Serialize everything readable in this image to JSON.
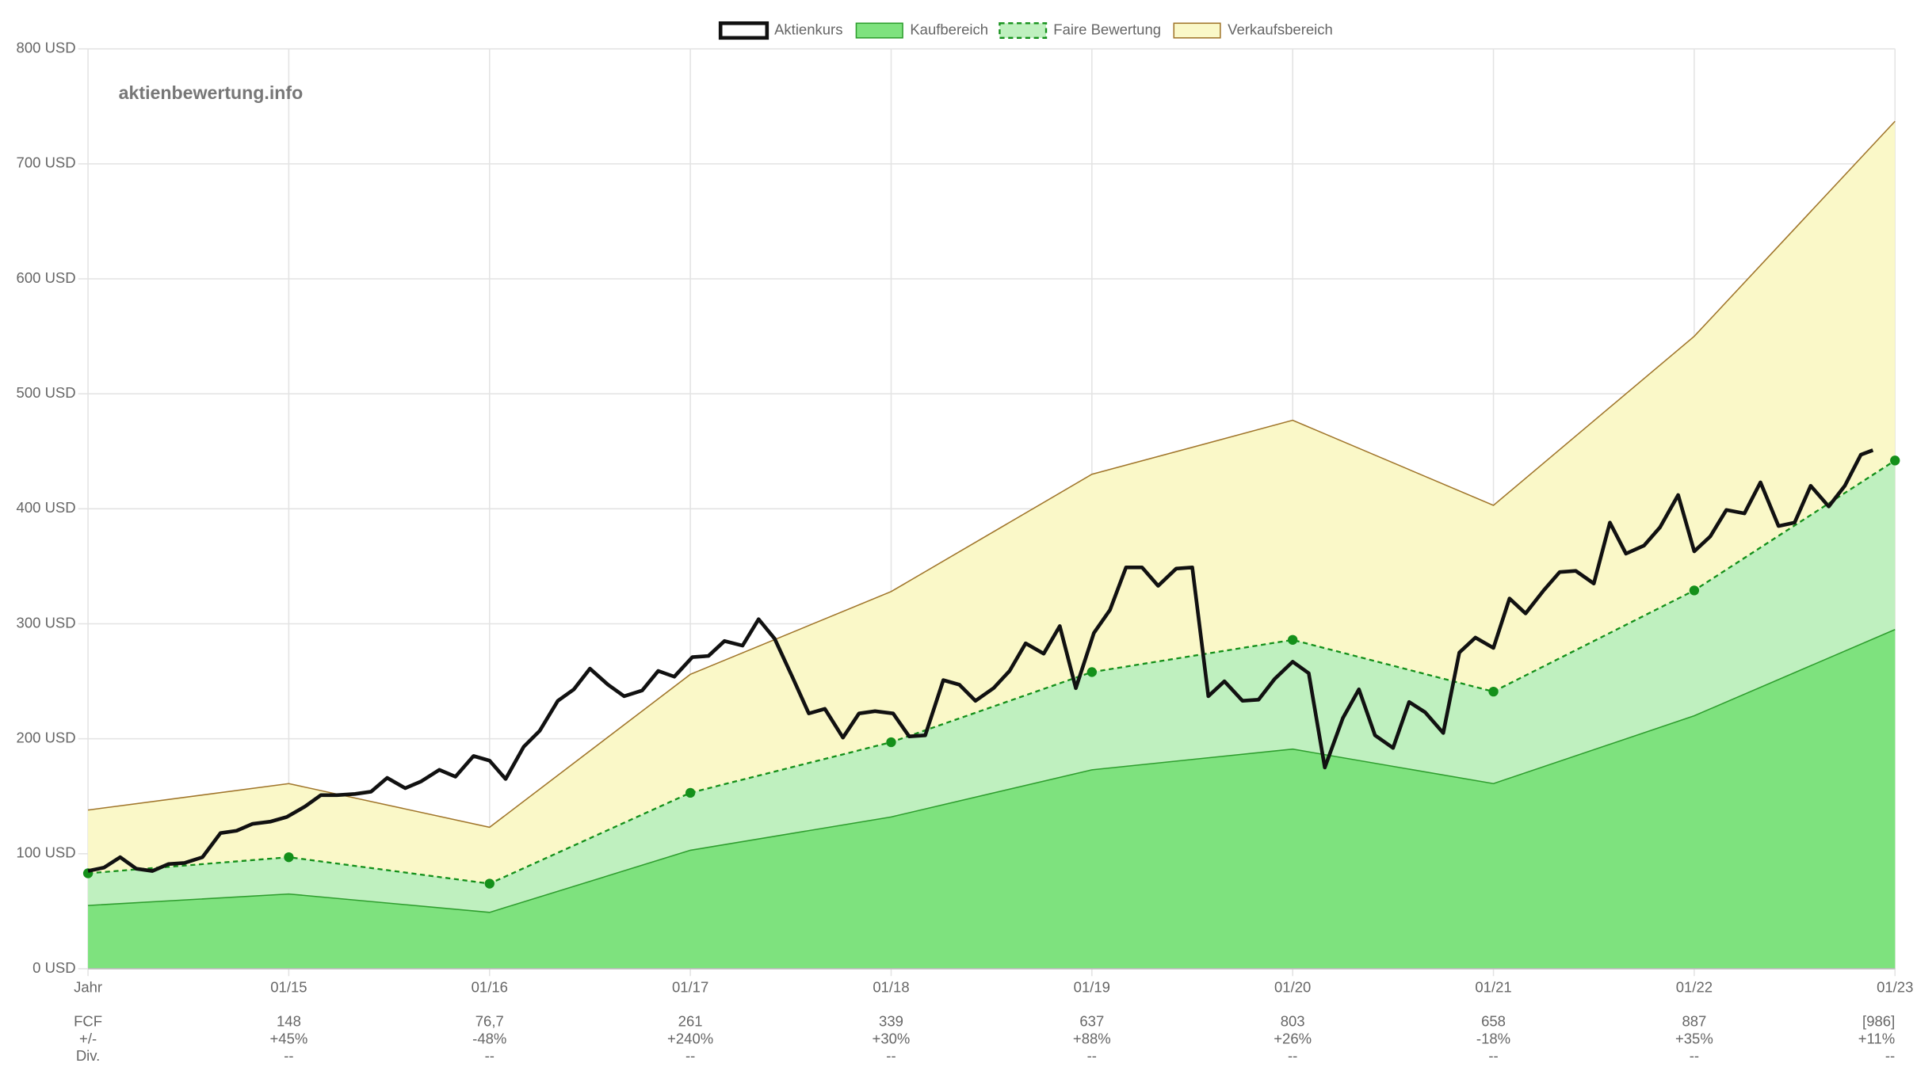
{
  "chart_data": {
    "type": "line",
    "watermark": "aktienbewertung.info",
    "x": [
      0,
      1,
      2,
      3,
      4,
      5,
      6,
      7,
      8,
      9
    ],
    "xlim": [
      0,
      9
    ],
    "xticks": [
      {
        "value": 0,
        "label": "Jahr"
      },
      {
        "value": 1,
        "label": "01/15"
      },
      {
        "value": 2,
        "label": "01/16"
      },
      {
        "value": 3,
        "label": "01/17"
      },
      {
        "value": 4,
        "label": "01/18"
      },
      {
        "value": 5,
        "label": "01/19"
      },
      {
        "value": 6,
        "label": "01/20"
      },
      {
        "value": 7,
        "label": "01/21"
      },
      {
        "value": 8,
        "label": "01/22"
      },
      {
        "value": 9,
        "label": "01/23"
      }
    ],
    "ylim": [
      0,
      800
    ],
    "yticks": [
      {
        "value": 0,
        "label": "0 USD"
      },
      {
        "value": 100,
        "label": "100 USD"
      },
      {
        "value": 200,
        "label": "200 USD"
      },
      {
        "value": 300,
        "label": "300 USD"
      },
      {
        "value": 400,
        "label": "400 USD"
      },
      {
        "value": 500,
        "label": "500 USD"
      },
      {
        "value": 600,
        "label": "600 USD"
      },
      {
        "value": 700,
        "label": "700 USD"
      },
      {
        "value": 800,
        "label": "800 USD"
      }
    ],
    "grid": true,
    "legend": "top",
    "series": [
      {
        "name": "Aktienkurs",
        "kind": "line",
        "color": "#111111",
        "x": [
          0,
          0.08,
          0.16,
          0.24,
          0.32,
          0.4,
          0.48,
          0.57,
          0.66,
          0.74,
          0.82,
          0.91,
          0.99,
          1.08,
          1.16,
          1.24,
          1.33,
          1.41,
          1.49,
          1.58,
          1.66,
          1.75,
          1.83,
          1.92,
          2.0,
          2.08,
          2.17,
          2.25,
          2.34,
          2.42,
          2.5,
          2.59,
          2.67,
          2.76,
          2.84,
          2.92,
          3.01,
          3.09,
          3.17,
          3.26,
          3.34,
          3.42,
          3.51,
          3.59,
          3.67,
          3.76,
          3.84,
          3.92,
          4.01,
          4.09,
          4.17,
          4.26,
          4.34,
          4.42,
          4.51,
          4.59,
          4.67,
          4.76,
          4.84,
          4.92,
          5.01,
          5.09,
          5.17,
          5.25,
          5.33,
          5.42,
          5.5,
          5.58,
          5.66,
          5.75,
          5.83,
          5.91,
          6.0,
          6.08,
          6.16,
          6.25,
          6.33,
          6.41,
          6.5,
          6.58,
          6.66,
          6.75,
          6.83,
          6.91,
          7.0,
          7.08,
          7.16,
          7.25,
          7.33,
          7.41,
          7.5,
          7.58,
          7.66,
          7.75,
          7.83,
          7.92,
          8.0,
          8.08,
          8.16,
          8.25,
          8.33,
          8.42,
          8.5,
          8.58,
          8.67,
          8.75,
          8.83,
          8.89
        ],
        "values": [
          85,
          88,
          97,
          87,
          85,
          91,
          92,
          97,
          118,
          120,
          126,
          128,
          132,
          141,
          151,
          151,
          152,
          154,
          166,
          157,
          163,
          173,
          167,
          185,
          181,
          165,
          193,
          207,
          233,
          243,
          261,
          247,
          237,
          242,
          259,
          254,
          271,
          272,
          285,
          281,
          304,
          287,
          253,
          222,
          226,
          201,
          222,
          224,
          222,
          202,
          203,
          251,
          247,
          233,
          244,
          259,
          283,
          274,
          298,
          244,
          292,
          312,
          349,
          349,
          333,
          348,
          349,
          237,
          250,
          233,
          234,
          252,
          267,
          257,
          175,
          218,
          243,
          203,
          192,
          232,
          223,
          205,
          275,
          288,
          279,
          322,
          309,
          329,
          345,
          346,
          335,
          388,
          361,
          368,
          384,
          412,
          363,
          376,
          399,
          396,
          423,
          385,
          388,
          420,
          402,
          420,
          447,
          451
        ]
      },
      {
        "name": "Kaufbereich",
        "kind": "area",
        "color": "#2e9e2e",
        "fill": "#7ee27e",
        "values": [
          55,
          65,
          49,
          103,
          132,
          173,
          191,
          161,
          220,
          295
        ]
      },
      {
        "name": "Faire Bewertung",
        "kind": "dashed",
        "color": "#14901a",
        "fill": "#bff0bf",
        "values": [
          83,
          97,
          74,
          153,
          197,
          258,
          286,
          241,
          329,
          442
        ]
      },
      {
        "name": "Verkaufsbereich",
        "kind": "area",
        "color": "#a0752a",
        "fill": "#faf8c8",
        "values": [
          138,
          161,
          123,
          256,
          328,
          430,
          477,
          403,
          550,
          737
        ]
      }
    ]
  },
  "table": {
    "rows": [
      {
        "label": "FCF",
        "cells": [
          "148",
          "76,7",
          "261",
          "339",
          "637",
          "803",
          "658",
          "887",
          "[986]"
        ]
      },
      {
        "label": "+/-",
        "cells": [
          "+45%",
          "-48%",
          "+240%",
          "+30%",
          "+88%",
          "+26%",
          "-18%",
          "+35%",
          "+11%"
        ]
      },
      {
        "label": "Div.",
        "cells": [
          "--",
          "--",
          "--",
          "--",
          "--",
          "--",
          "--",
          "--",
          "--"
        ]
      }
    ]
  }
}
